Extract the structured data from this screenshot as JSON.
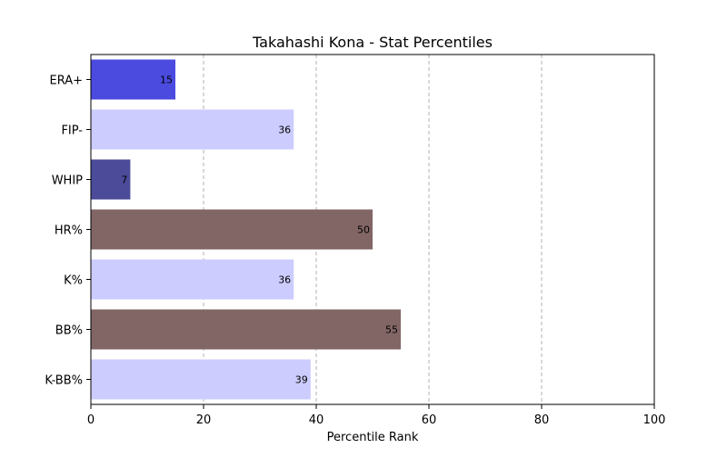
{
  "chart_data": {
    "type": "bar",
    "orientation": "horizontal",
    "title": "Takahashi Kona - Stat Percentiles",
    "xlabel": "Percentile Rank",
    "ylabel": "",
    "xlim": [
      0,
      100
    ],
    "xticks": [
      "0",
      "20",
      "40",
      "60",
      "80",
      "100"
    ],
    "grid": "x-dashed",
    "categories": [
      "ERA+",
      "FIP-",
      "WHIP",
      "HR%",
      "K%",
      "BB%",
      "K-BB%"
    ],
    "values": [
      15,
      36,
      7,
      50,
      36,
      55,
      39
    ],
    "colors": [
      "#4b4be0",
      "#ccccff",
      "#4b4b9a",
      "#826666",
      "#ccccff",
      "#826666",
      "#ccccff"
    ]
  }
}
